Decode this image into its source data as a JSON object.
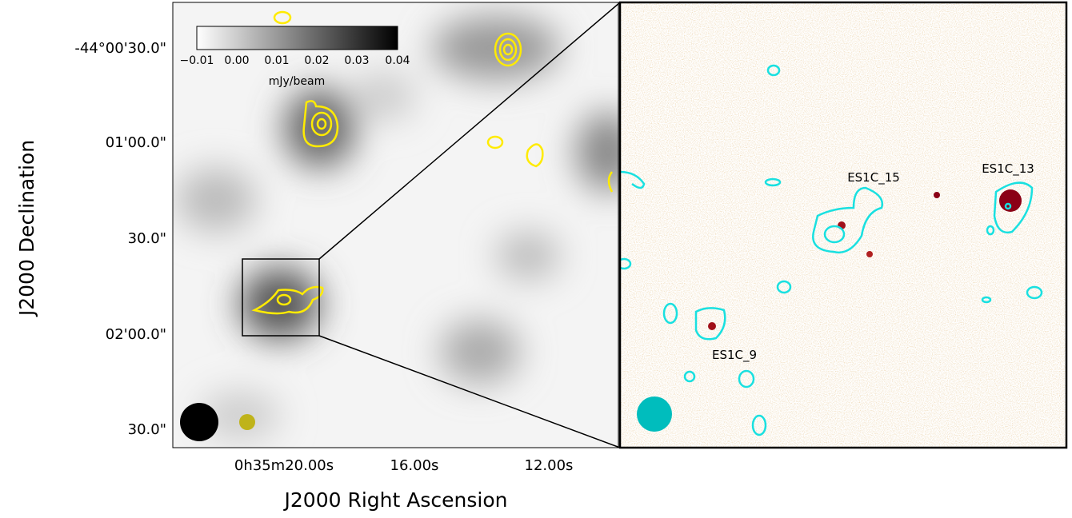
{
  "left_panel": {
    "x_label": "J2000 Right Ascension",
    "y_label": "J2000 Declination",
    "x_ticks": [
      "0h35m20.00s",
      "16.00s",
      "12.00s"
    ],
    "y_ticks": [
      "-44°00'30.0\"",
      "01'00.0\"",
      "30.0\"",
      "02'00.0\"",
      "30.0\""
    ],
    "colorbar": {
      "label": "mJy/beam",
      "ticks": [
        "−0.01",
        "0.00",
        "0.01",
        "0.02",
        "0.03",
        "0.04"
      ]
    }
  },
  "right_panel": {
    "sources": [
      "ES1C_15",
      "ES1C_13",
      "ES1C_9"
    ]
  }
}
